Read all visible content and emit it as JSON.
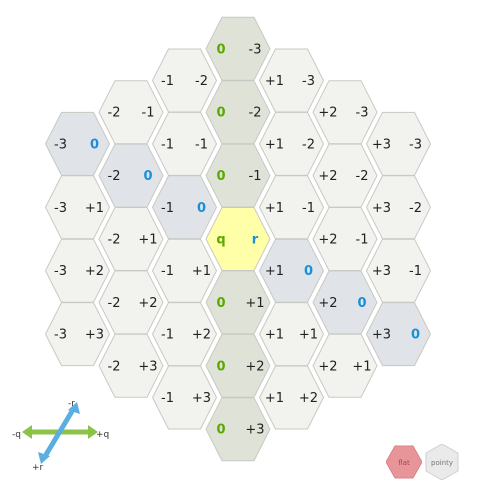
{
  "colors": {
    "cell_fill": "#f2f2ef",
    "cell_stroke": "#c8c8c4",
    "q_axis_fill": "#dfe3d7",
    "r_axis_fill": "#e0e4e8",
    "center_fill": "#ffffa8",
    "q_text": "#5aa800",
    "r_text": "#1a8fd8",
    "s_text": "#222222",
    "flat_fill": "#e8959a",
    "pointy_fill": "#eaeaea"
  },
  "center": {
    "q_label": "q",
    "r_label": "r"
  },
  "cells": [
    {
      "q": "0",
      "r": "-3",
      "type": "q_axis"
    },
    {
      "q": "-1",
      "r": "-2",
      "type": "normal"
    },
    {
      "q": "+1",
      "r": "-3",
      "type": "normal"
    },
    {
      "q": "-2",
      "r": "-1",
      "type": "normal"
    },
    {
      "q": "0",
      "r": "-2",
      "type": "q_axis"
    },
    {
      "q": "+2",
      "r": "-3",
      "type": "normal"
    },
    {
      "q": "-3",
      "r": "0",
      "type": "r_axis"
    },
    {
      "q": "-1",
      "r": "-1",
      "type": "normal"
    },
    {
      "q": "+1",
      "r": "-2",
      "type": "normal"
    },
    {
      "q": "+3",
      "r": "-3",
      "type": "normal"
    },
    {
      "q": "-2",
      "r": "0",
      "type": "r_axis"
    },
    {
      "q": "0",
      "r": "-1",
      "type": "q_axis"
    },
    {
      "q": "+2",
      "r": "-2",
      "type": "normal"
    },
    {
      "q": "-3",
      "r": "+1",
      "type": "normal"
    },
    {
      "q": "-1",
      "r": "0",
      "type": "r_axis"
    },
    {
      "q": "+1",
      "r": "-1",
      "type": "normal"
    },
    {
      "q": "+3",
      "r": "-2",
      "type": "normal"
    },
    {
      "q": "-2",
      "r": "+1",
      "type": "normal"
    },
    {
      "q": "q",
      "r": "r",
      "type": "center"
    },
    {
      "q": "+2",
      "r": "-1",
      "type": "normal"
    },
    {
      "q": "-3",
      "r": "+2",
      "type": "normal"
    },
    {
      "q": "-1",
      "r": "+1",
      "type": "normal"
    },
    {
      "q": "+1",
      "r": "0",
      "type": "r_axis"
    },
    {
      "q": "+3",
      "r": "-1",
      "type": "normal"
    },
    {
      "q": "-2",
      "r": "+2",
      "type": "normal"
    },
    {
      "q": "0",
      "r": "+1",
      "type": "q_axis"
    },
    {
      "q": "+2",
      "r": "0",
      "type": "r_axis"
    },
    {
      "q": "-3",
      "r": "+3",
      "type": "normal"
    },
    {
      "q": "-1",
      "r": "+2",
      "type": "normal"
    },
    {
      "q": "+1",
      "r": "+1",
      "type": "normal"
    },
    {
      "q": "+3",
      "r": "0",
      "type": "r_axis"
    },
    {
      "q": "-2",
      "r": "+3",
      "type": "normal"
    },
    {
      "q": "0",
      "r": "+2",
      "type": "q_axis"
    },
    {
      "q": "+2",
      "r": "+1",
      "type": "normal"
    },
    {
      "q": "-1",
      "r": "+3",
      "type": "normal"
    },
    {
      "q": "+1",
      "r": "+2",
      "type": "normal"
    },
    {
      "q": "0",
      "r": "+3",
      "type": "q_axis"
    }
  ],
  "legend": {
    "minus_r": "-r",
    "plus_r": "+r",
    "minus_q": "-q",
    "plus_q": "+q"
  },
  "buttons": {
    "flat_label": "flat",
    "pointy_label": "pointy"
  }
}
